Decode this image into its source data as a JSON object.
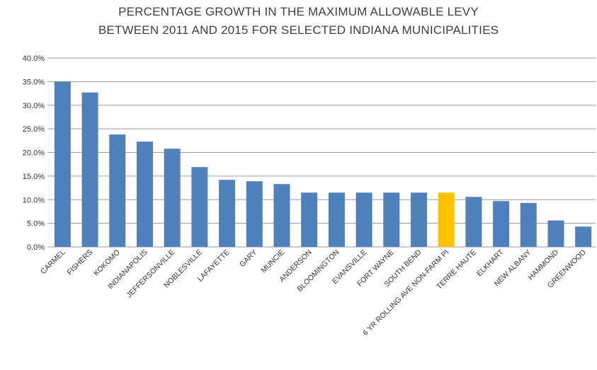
{
  "title": {
    "line1": "PERCENTAGE GROWTH IN THE MAXIMUM ALLOWABLE LEVY",
    "line2": "BETWEEN 2011 AND 2015 FOR SELECTED INDIANA MUNICIPALITIES"
  },
  "colors": {
    "bar": "#4f81bd",
    "highlight": "#ffc000",
    "grid": "#9a9a9a"
  },
  "chart_data": {
    "type": "bar",
    "title": "PERCENTAGE GROWTH IN THE MAXIMUM ALLOWABLE LEVY BETWEEN 2011 AND 2015 FOR SELECTED INDIANA MUNICIPALITIES",
    "xlabel": "",
    "ylabel": "",
    "categories": [
      "CARMEL",
      "FISHERS",
      "KOKOMO",
      "INDIANAPOLIS",
      "JEFFERSONVILLE",
      "NOBLESVILLE",
      "LAFAYETTE",
      "GARY",
      "MUNCIE",
      "ANDERSON",
      "BLOOMINGTON",
      "EVANSVILLE",
      "FORT WAYNE",
      "SOUTH BEND",
      "6 YR ROLLING AVE NON-FARM PI",
      "TERRE HAUTE",
      "ELKHART",
      "NEW ALBANY",
      "HAMMOND",
      "GREENWOOD"
    ],
    "values": [
      35.0,
      32.7,
      23.8,
      22.3,
      20.8,
      16.9,
      14.2,
      13.9,
      13.3,
      11.5,
      11.5,
      11.5,
      11.5,
      11.5,
      11.5,
      10.6,
      9.7,
      9.3,
      5.6,
      4.3
    ],
    "highlight_category": "6 YR ROLLING AVE NON-FARM PI",
    "ylim": [
      0,
      40
    ],
    "yticks": [
      "0.0%",
      "5.0%",
      "10.0%",
      "15.0%",
      "20.0%",
      "25.0%",
      "30.0%",
      "35.0%",
      "40.0%"
    ],
    "grid": true,
    "legend": "none"
  }
}
